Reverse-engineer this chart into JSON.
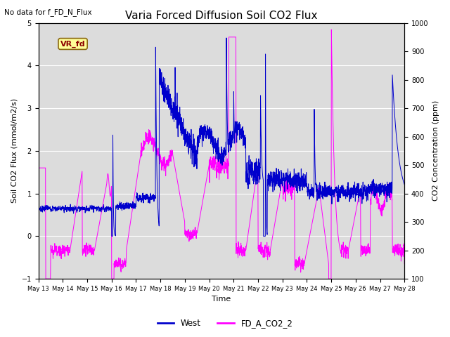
{
  "title": "Varia Forced Diffusion Soil CO2 Flux",
  "no_data_label": "No data for f_FD_N_Flux",
  "xlabel": "Time",
  "ylabel_left": "Soil CO2 Flux (mmol/m2/s)",
  "ylabel_right": "CO2 Concentration (ppm)",
  "ylim_left": [
    -1.0,
    5.0
  ],
  "ylim_right": [
    100,
    1000
  ],
  "legend_entries": [
    "West",
    "FD_A_CO2_2"
  ],
  "line_color_west": "#0000cc",
  "line_color_co2": "#ff00ff",
  "bg_color": "#dcdcdc",
  "annotation_box_label": "VR_fd",
  "annotation_box_color": "#ffff99",
  "annotation_box_edge": "#8b6914",
  "annotation_text_color": "#8b0000",
  "title_fontsize": 11,
  "label_fontsize": 8,
  "tick_fontsize": 7,
  "xtick_labels": [
    "May 13",
    "May 14",
    "May 15",
    "May 16",
    "May 17",
    "May 18",
    "May 19",
    "May 20",
    "May 21",
    "May 22",
    "May 23",
    "May 24",
    "May 25",
    "May 26",
    "May 27",
    "May 28"
  ],
  "n_points": 4000,
  "seed": 7
}
